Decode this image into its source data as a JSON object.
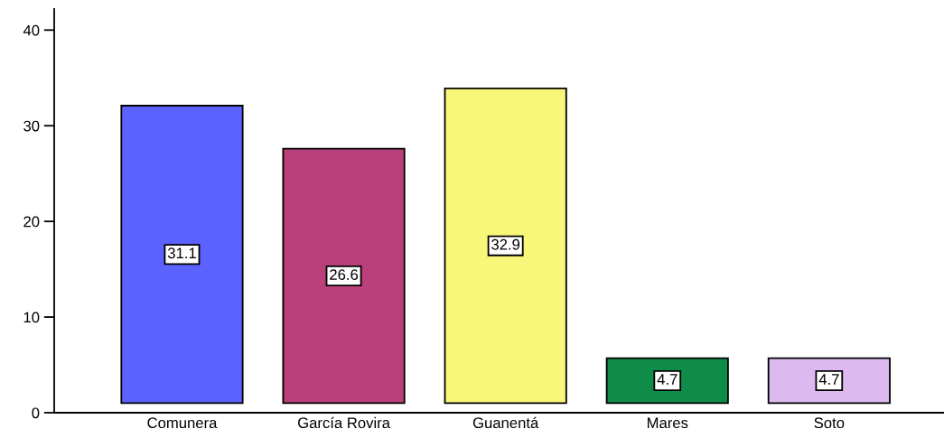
{
  "chart_data": {
    "type": "bar",
    "categories": [
      "Comunera",
      "García Rovira",
      "Guanentá",
      "Mares",
      "Soto"
    ],
    "values": [
      31.1,
      26.6,
      32.9,
      4.7,
      4.7
    ],
    "base": [
      1,
      1,
      1,
      1,
      1
    ],
    "colors": [
      "#5b62ff",
      "#b9407b",
      "#f8f77a",
      "#0e8c48",
      "#dcb9ef"
    ],
    "ylim": [
      0,
      42.2
    ],
    "yticks": [
      0,
      10,
      20,
      30,
      40
    ],
    "data_labels": true,
    "grid": false,
    "legend": false
  }
}
